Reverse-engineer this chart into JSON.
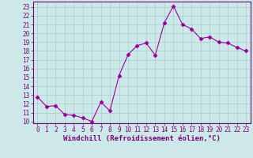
{
  "x": [
    0,
    1,
    2,
    3,
    4,
    5,
    6,
    7,
    8,
    9,
    10,
    11,
    12,
    13,
    14,
    15,
    16,
    17,
    18,
    19,
    20,
    21,
    22,
    23
  ],
  "y": [
    12.8,
    11.7,
    11.8,
    10.8,
    10.7,
    10.4,
    10.0,
    12.2,
    11.2,
    15.2,
    17.6,
    18.6,
    18.9,
    17.5,
    21.2,
    23.1,
    21.0,
    20.5,
    19.4,
    19.6,
    19.0,
    18.9,
    18.4,
    18.0
  ],
  "line_color": "#990099",
  "marker": "D",
  "marker_size": 2.5,
  "bg_color": "#cce8e8",
  "grid_color": "#aacccc",
  "xlabel": "Windchill (Refroidissement éolien,°C)",
  "ylabel_ticks": [
    10,
    11,
    12,
    13,
    14,
    15,
    16,
    17,
    18,
    19,
    20,
    21,
    22,
    23
  ],
  "xlim": [
    -0.5,
    23.5
  ],
  "ylim": [
    9.8,
    23.6
  ],
  "xticks": [
    0,
    1,
    2,
    3,
    4,
    5,
    6,
    7,
    8,
    9,
    10,
    11,
    12,
    13,
    14,
    15,
    16,
    17,
    18,
    19,
    20,
    21,
    22,
    23
  ],
  "title_color": "#770077",
  "axis_color": "#770077",
  "tick_color": "#770077",
  "label_fontsize": 6.5,
  "tick_fontsize": 5.5
}
